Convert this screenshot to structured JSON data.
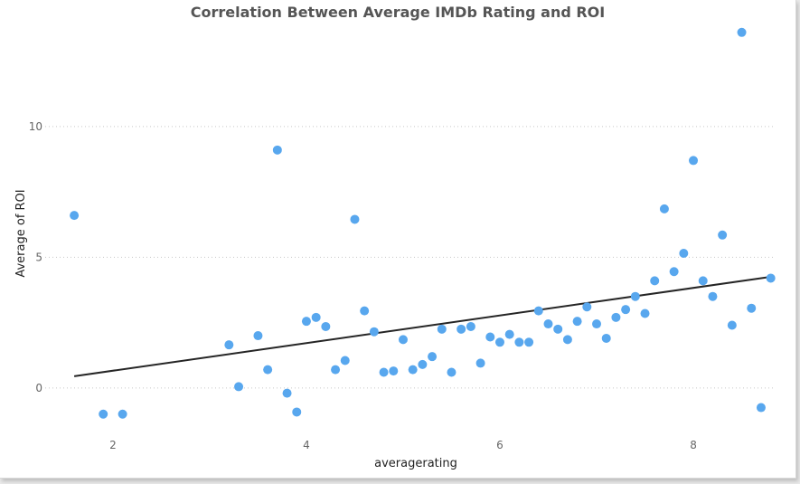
{
  "chart_data": {
    "type": "scatter",
    "title": "Correlation Between Average IMDb Rating and ROI",
    "xlabel": "averagerating",
    "ylabel": "Average of ROI",
    "xlim": [
      1.3,
      8.85
    ],
    "ylim": [
      -1.7,
      13.8
    ],
    "xticks": [
      2,
      4,
      6,
      8
    ],
    "yticks": [
      0,
      5,
      10
    ],
    "grid": true,
    "colors": {
      "points": "#58a7ee",
      "trendline": "#252525"
    },
    "points": [
      {
        "x": 1.6,
        "y": 6.6
      },
      {
        "x": 1.9,
        "y": -1.0
      },
      {
        "x": 2.1,
        "y": -1.0
      },
      {
        "x": 3.2,
        "y": 1.65
      },
      {
        "x": 3.3,
        "y": 0.05
      },
      {
        "x": 3.5,
        "y": 2.0
      },
      {
        "x": 3.6,
        "y": 0.7
      },
      {
        "x": 3.7,
        "y": 9.1
      },
      {
        "x": 3.8,
        "y": -0.2
      },
      {
        "x": 3.9,
        "y": -0.92
      },
      {
        "x": 4.0,
        "y": 2.55
      },
      {
        "x": 4.1,
        "y": 2.7
      },
      {
        "x": 4.2,
        "y": 2.35
      },
      {
        "x": 4.3,
        "y": 0.7
      },
      {
        "x": 4.4,
        "y": 1.05
      },
      {
        "x": 4.5,
        "y": 6.45
      },
      {
        "x": 4.6,
        "y": 2.95
      },
      {
        "x": 4.7,
        "y": 2.15
      },
      {
        "x": 4.8,
        "y": 0.6
      },
      {
        "x": 4.9,
        "y": 0.65
      },
      {
        "x": 5.0,
        "y": 1.85
      },
      {
        "x": 5.1,
        "y": 0.7
      },
      {
        "x": 5.2,
        "y": 0.9
      },
      {
        "x": 5.3,
        "y": 1.2
      },
      {
        "x": 5.4,
        "y": 2.25
      },
      {
        "x": 5.5,
        "y": 0.6
      },
      {
        "x": 5.6,
        "y": 2.25
      },
      {
        "x": 5.7,
        "y": 2.35
      },
      {
        "x": 5.8,
        "y": 0.95
      },
      {
        "x": 5.9,
        "y": 1.95
      },
      {
        "x": 6.0,
        "y": 1.75
      },
      {
        "x": 6.1,
        "y": 2.05
      },
      {
        "x": 6.2,
        "y": 1.75
      },
      {
        "x": 6.3,
        "y": 1.75
      },
      {
        "x": 6.4,
        "y": 2.95
      },
      {
        "x": 6.5,
        "y": 2.45
      },
      {
        "x": 6.6,
        "y": 2.25
      },
      {
        "x": 6.7,
        "y": 1.85
      },
      {
        "x": 6.8,
        "y": 2.55
      },
      {
        "x": 6.9,
        "y": 3.1
      },
      {
        "x": 7.0,
        "y": 2.45
      },
      {
        "x": 7.1,
        "y": 1.9
      },
      {
        "x": 7.2,
        "y": 2.7
      },
      {
        "x": 7.3,
        "y": 3.0
      },
      {
        "x": 7.4,
        "y": 3.5
      },
      {
        "x": 7.5,
        "y": 2.85
      },
      {
        "x": 7.6,
        "y": 4.1
      },
      {
        "x": 7.7,
        "y": 6.85
      },
      {
        "x": 7.8,
        "y": 4.45
      },
      {
        "x": 7.9,
        "y": 5.15
      },
      {
        "x": 8.0,
        "y": 8.7
      },
      {
        "x": 8.1,
        "y": 4.1
      },
      {
        "x": 8.2,
        "y": 3.5
      },
      {
        "x": 8.3,
        "y": 5.85
      },
      {
        "x": 8.4,
        "y": 2.4
      },
      {
        "x": 8.5,
        "y": 13.6
      },
      {
        "x": 8.6,
        "y": 3.05
      },
      {
        "x": 8.7,
        "y": -0.75
      },
      {
        "x": 8.8,
        "y": 4.2
      }
    ],
    "trendline": {
      "x": [
        1.6,
        8.8
      ],
      "y": [
        0.45,
        4.25
      ]
    }
  }
}
